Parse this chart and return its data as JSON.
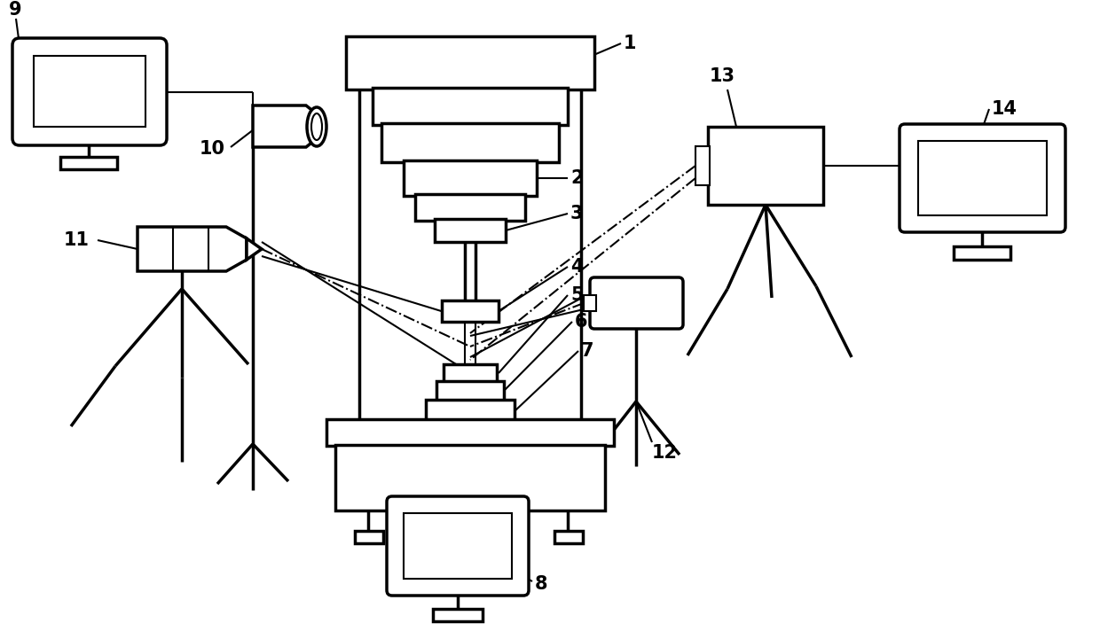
{
  "bg_color": "#ffffff",
  "line_color": "#000000",
  "lw": 2.5,
  "lw_thin": 1.5,
  "fig_width": 12.4,
  "fig_height": 7.21
}
